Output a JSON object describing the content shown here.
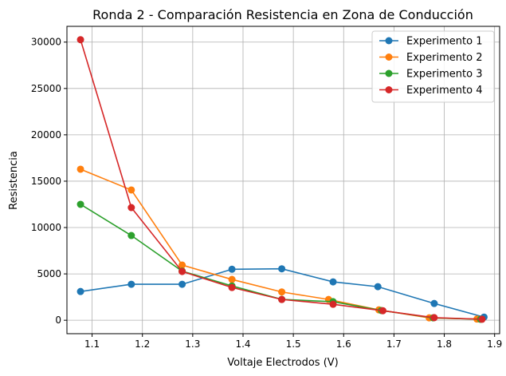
{
  "chart_data": {
    "type": "line",
    "title": "Ronda 2 - Comparación Resistencia en Zona de Conducción",
    "xlabel": "Voltaje Electrodos (V)",
    "ylabel": "Resistencia",
    "xlim": [
      1.05,
      1.91
    ],
    "ylim": [
      -1450,
      31700
    ],
    "xticks": [
      "1.1",
      "1.2",
      "1.3",
      "1.4",
      "1.5",
      "1.6",
      "1.7",
      "1.8",
      "1.9"
    ],
    "xtick_values": [
      1.1,
      1.2,
      1.3,
      1.4,
      1.5,
      1.6,
      1.7,
      1.8,
      1.9
    ],
    "yticks": [
      "0",
      "5000",
      "10000",
      "15000",
      "20000",
      "25000",
      "30000"
    ],
    "ytick_values": [
      0,
      5000,
      10000,
      15000,
      20000,
      25000,
      30000
    ],
    "grid": true,
    "legend": "top-right",
    "series": [
      {
        "name": "Experimento 1",
        "color": "#1f77b4",
        "x": [
          1.077,
          1.178,
          1.279,
          1.378,
          1.477,
          1.579,
          1.668,
          1.78,
          1.879
        ],
        "y": [
          3100,
          3880,
          3880,
          5500,
          5550,
          4140,
          3620,
          1810,
          340
        ]
      },
      {
        "name": "Experimento 2",
        "color": "#ff7f0e",
        "x": [
          1.077,
          1.178,
          1.279,
          1.378,
          1.477,
          1.57,
          1.67,
          1.77,
          1.865
        ],
        "y": [
          16290,
          14050,
          5950,
          4400,
          3050,
          2240,
          1120,
          260,
          130
        ]
      },
      {
        "name": "Experimento 3",
        "color": "#2ca02c",
        "x": [
          1.077,
          1.178,
          1.279,
          1.378,
          1.477,
          1.579,
          1.675,
          1.778,
          1.872
        ],
        "y": [
          12500,
          9140,
          5300,
          3700,
          2250,
          2000,
          1050,
          260,
          100
        ]
      },
      {
        "name": "Experimento 4",
        "color": "#d62728",
        "x": [
          1.077,
          1.178,
          1.279,
          1.378,
          1.477,
          1.579,
          1.678,
          1.78,
          1.875
        ],
        "y": [
          30260,
          12150,
          5260,
          3530,
          2240,
          1720,
          1030,
          280,
          110
        ]
      }
    ]
  }
}
